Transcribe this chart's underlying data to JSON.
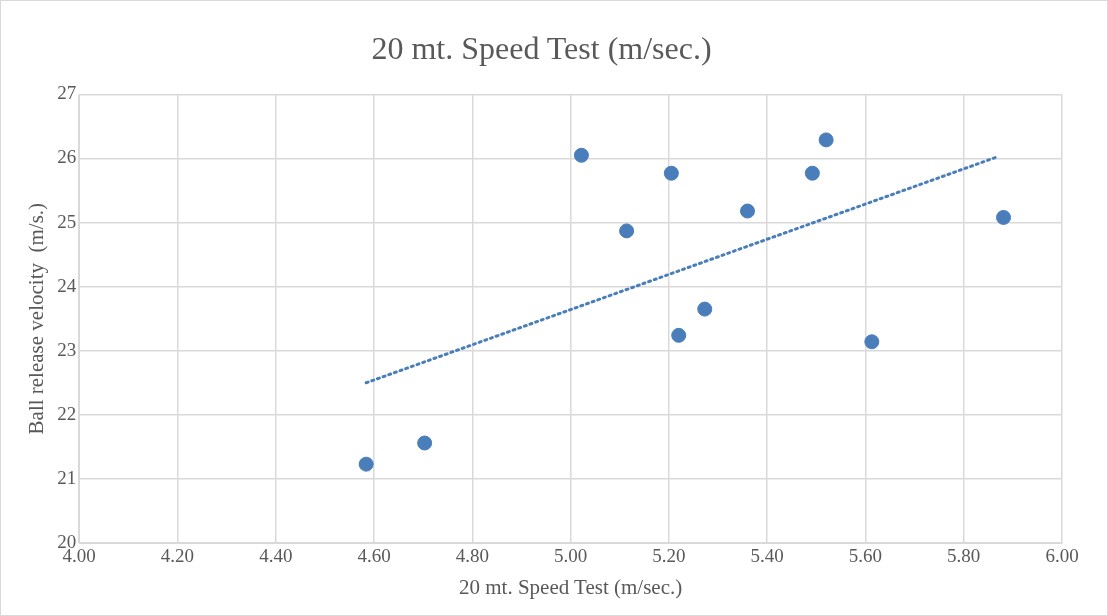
{
  "chart_data": {
    "type": "scatter",
    "title": "20 mt. Speed Test (m/sec.)",
    "xlabel": "20 mt. Speed Test (m/sec.)",
    "ylabel": "Ball release velocity  (m/s.)",
    "xlim": [
      4.0,
      6.0
    ],
    "xticks": [
      {
        "value": 4.0,
        "label": "4.00"
      },
      {
        "value": 4.2,
        "label": "4.20"
      },
      {
        "value": 4.4,
        "label": "4.40"
      },
      {
        "value": 4.6,
        "label": "4.60"
      },
      {
        "value": 4.8,
        "label": "4.80"
      },
      {
        "value": 5.0,
        "label": "5.00"
      },
      {
        "value": 5.2,
        "label": "5.20"
      },
      {
        "value": 5.4,
        "label": "5.40"
      },
      {
        "value": 5.6,
        "label": "5.60"
      },
      {
        "value": 5.8,
        "label": "5.80"
      },
      {
        "value": 6.0,
        "label": "6.00"
      }
    ],
    "ylim": [
      20,
      27
    ],
    "yticks": [
      20,
      21,
      22,
      23,
      24,
      25,
      26,
      27
    ],
    "grid": true,
    "legend": false,
    "series": [
      {
        "type": "scatter",
        "color": "#4a7ebb",
        "marker": "circle",
        "x": [
          4.584,
          4.703,
          5.022,
          5.114,
          5.205,
          5.22,
          5.273,
          5.36,
          5.492,
          5.52,
          5.613,
          5.881
        ],
        "values": [
          21.23,
          21.56,
          26.05,
          24.87,
          25.77,
          23.24,
          23.65,
          25.18,
          25.77,
          26.29,
          23.14,
          25.08
        ]
      },
      {
        "type": "line",
        "color": "#4a7ebb",
        "marker": "none",
        "line_style": "dotted",
        "x": [
          4.584,
          5.87
        ],
        "values": [
          22.5,
          26.03
        ]
      }
    ]
  }
}
